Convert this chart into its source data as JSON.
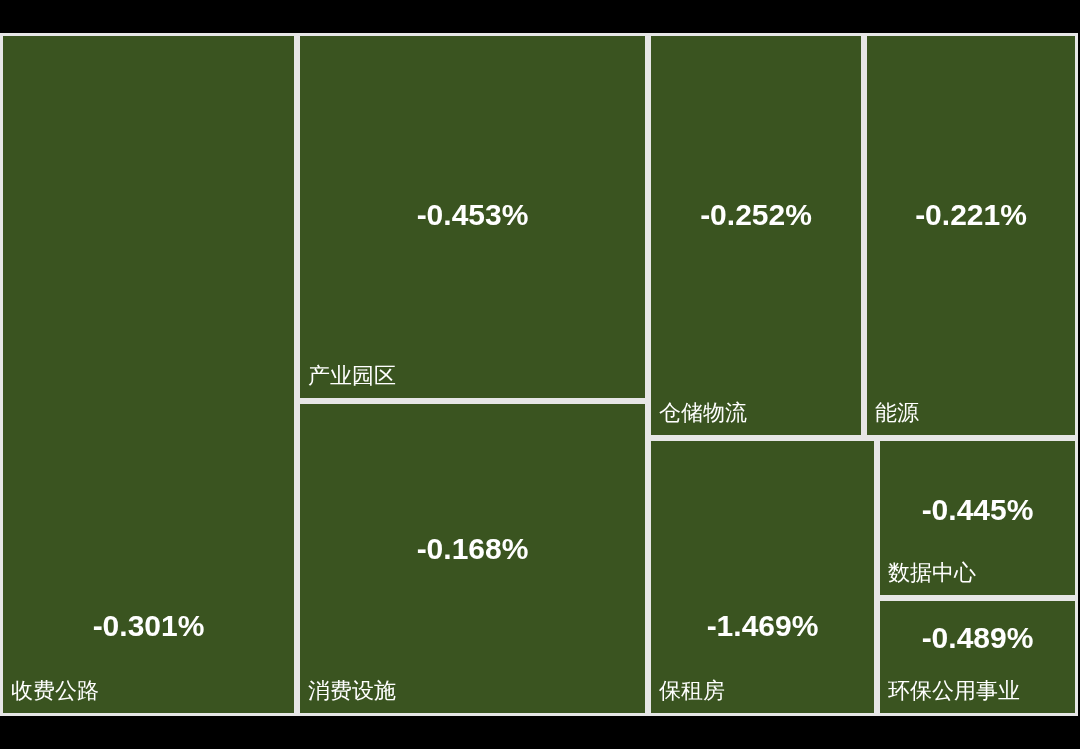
{
  "chart_data": {
    "type": "other",
    "categories": [
      "收费公路",
      "产业园区",
      "消费设施",
      "仓储物流",
      "能源",
      "保租房",
      "数据中心",
      "环保公用事业"
    ],
    "values": [
      -0.301,
      -0.453,
      -0.168,
      -0.252,
      -0.221,
      -1.469,
      -0.445,
      -0.489
    ],
    "value_labels": [
      "-0.301%",
      "-0.453%",
      "-0.168%",
      "-0.252%",
      "-0.221%",
      "-1.469%",
      "-0.445%",
      "-0.489%"
    ],
    "colors": [
      "#3a5420",
      "#3a5420",
      "#3a5420",
      "#3a5420",
      "#3a5420",
      "#3a5420",
      "#3a5420",
      "#3a5420"
    ]
  }
}
